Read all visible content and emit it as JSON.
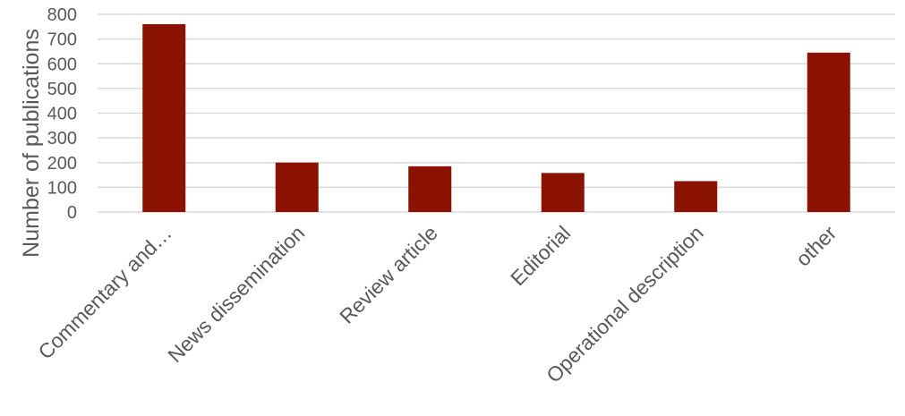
{
  "chart_data": {
    "type": "bar",
    "title": "",
    "xlabel": "",
    "ylabel": "Number of publications",
    "categories": [
      "Commentary and…",
      "News dissemination",
      "Review article",
      "Editorial",
      "Operational description",
      "other"
    ],
    "values": [
      760,
      200,
      185,
      158,
      125,
      645
    ],
    "ylim": [
      0,
      800
    ],
    "yticks": [
      "0",
      "100",
      "200",
      "300",
      "400",
      "500",
      "600",
      "700",
      "800"
    ],
    "grid": true,
    "legend": "none",
    "bar_color": "#8B1100"
  }
}
